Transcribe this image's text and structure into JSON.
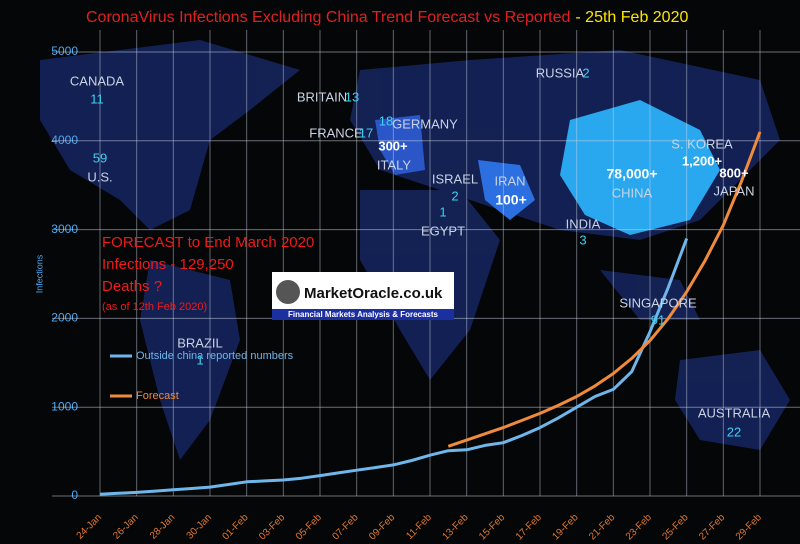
{
  "chart_data": {
    "type": "line",
    "title": "CoronaVirus Infections Excluding China Trend Forecast vs Reported",
    "title_date": "- 25th Feb 2020",
    "y_label": "Infections",
    "categories": [
      "24-Jan",
      null,
      "26-Jan",
      null,
      "28-Jan",
      null,
      "30-Jan",
      null,
      "01-Feb",
      null,
      "03-Feb",
      null,
      "05-Feb",
      null,
      "07-Feb",
      null,
      "09-Feb",
      null,
      "11-Feb",
      null,
      "13-Feb",
      null,
      "15-Feb",
      null,
      "17-Feb",
      null,
      "19-Feb",
      null,
      "21-Feb",
      null,
      "23-Feb",
      null,
      "25-Feb",
      null,
      "27-Feb",
      null,
      "29-Feb"
    ],
    "series": [
      {
        "name": "Outside china reported numbers",
        "color": "#6fb6ea",
        "values": [
          20,
          30,
          40,
          55,
          70,
          85,
          100,
          130,
          160,
          170,
          180,
          200,
          230,
          260,
          290,
          320,
          350,
          400,
          460,
          510,
          520,
          570,
          600,
          680,
          770,
          880,
          1000,
          1120,
          1200,
          1400,
          1850,
          2350,
          2900,
          null,
          null,
          null,
          null
        ]
      },
      {
        "name": "Forecast",
        "color": "#f08a3c",
        "values": [
          null,
          null,
          null,
          null,
          null,
          null,
          null,
          null,
          null,
          null,
          null,
          null,
          null,
          null,
          null,
          null,
          null,
          null,
          null,
          560,
          630,
          700,
          770,
          850,
          930,
          1020,
          1120,
          1240,
          1380,
          1550,
          1750,
          2000,
          2300,
          2650,
          3050,
          3550,
          4100
        ]
      }
    ],
    "ylim": [
      0,
      5000
    ],
    "yticks": [
      0,
      1000,
      2000,
      3000,
      4000,
      5000
    ],
    "grid": true,
    "annotations": [
      "FORECAST to End March 2020",
      "Infections - 129,250",
      "Deaths ?",
      "(as of 12th Feb  2020)"
    ],
    "logo": {
      "name": "MarketOracle.co.uk",
      "tagline": "Financial Markets Analysis & Forecasts"
    },
    "map_labels": [
      "CANADA",
      "11",
      "59",
      "U.S.",
      "BRITAIN",
      "13",
      "FRANCE",
      "17",
      "18",
      "GERMANY",
      "300+",
      "ITALY",
      "RUSSIA",
      "2",
      "ISRAEL",
      "2",
      "1",
      "EGYPT",
      "IRAN",
      "100+",
      "78,000+",
      "CHINA",
      "S. KOREA",
      "1,200+",
      "800+",
      "JAPAN",
      "INDIA",
      "3",
      "SINGAPORE",
      "91",
      "BRAZIL",
      "1",
      "AUSTRALIA",
      "22"
    ]
  }
}
